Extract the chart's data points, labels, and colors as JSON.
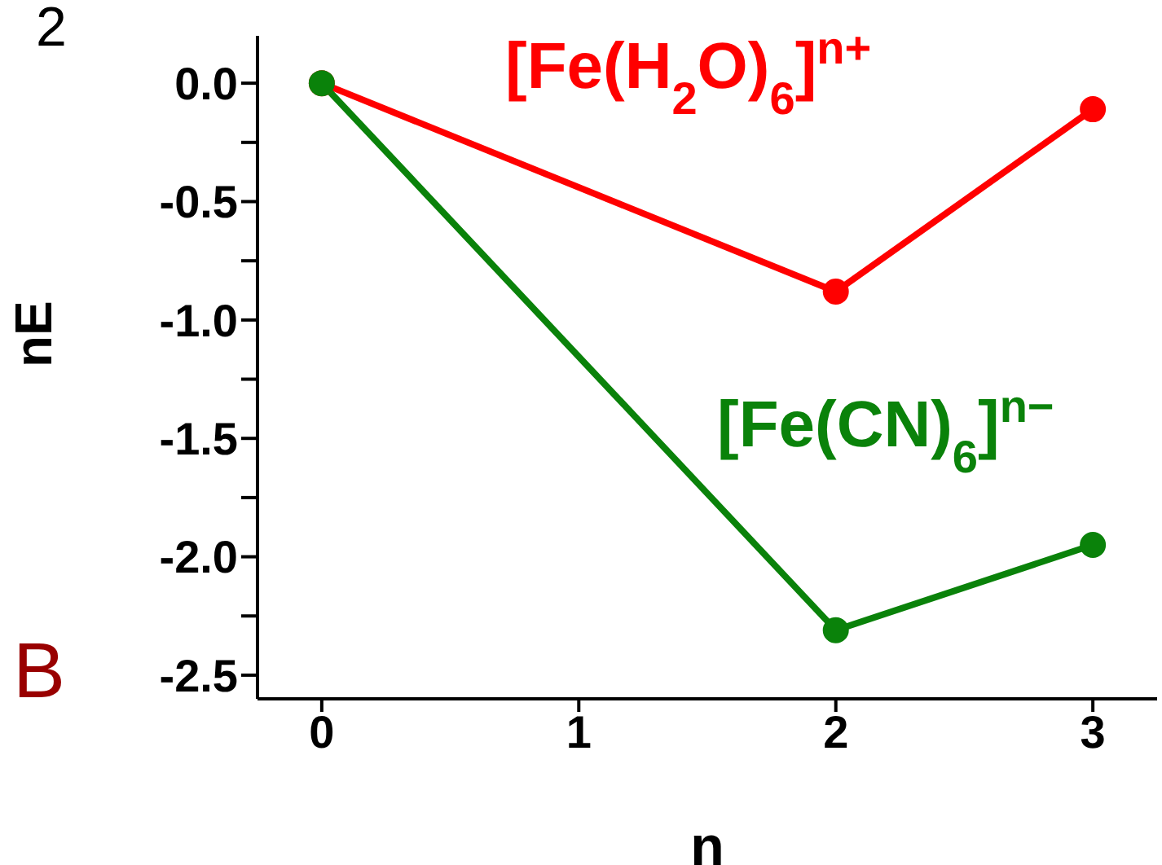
{
  "chart_data": {
    "type": "line",
    "xlabel": "n",
    "ylabel": "nE",
    "x": [
      0,
      2,
      3
    ],
    "series": [
      {
        "name": "[Fe(H$_{2}$O)$_{6}$]$^{n+}$",
        "color": "#ff0000",
        "values": [
          0,
          -0.88,
          -0.11
        ]
      },
      {
        "name": "[Fe(CN)$_{6}$]$^{n−}$",
        "color": "#0a820a",
        "values": [
          0,
          -2.31,
          -1.95
        ]
      }
    ],
    "xlim": [
      -0.25,
      3.25
    ],
    "xticks": [
      0,
      1,
      2,
      3
    ],
    "ylim": [
      -2.6,
      0.2
    ],
    "yticks": [
      {
        "value": 0,
        "label": "0.0"
      },
      {
        "value": -0.25,
        "label": null
      },
      {
        "value": -0.5,
        "label": "-0.5"
      },
      {
        "value": -0.75,
        "label": null
      },
      {
        "value": -1,
        "label": "-1.0"
      },
      {
        "value": -1.25,
        "label": null
      },
      {
        "value": -1.5,
        "label": "-1.5"
      },
      {
        "value": -1.75,
        "label": null
      },
      {
        "value": -2,
        "label": "-2.0"
      },
      {
        "value": -2.25,
        "label": null
      },
      {
        "value": -2.5,
        "label": "-2.5"
      }
    ],
    "marker": "circle",
    "line_style": "solid",
    "annotations": [
      "2",
      "B"
    ]
  }
}
